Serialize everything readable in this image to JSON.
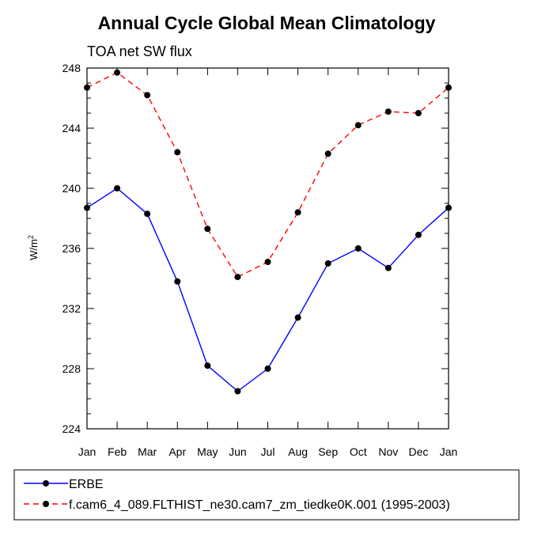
{
  "chart_data": {
    "type": "line",
    "title": "Annual Cycle Global Mean Climatology",
    "subtitle": "TOA net SW flux",
    "xlabel": "",
    "ylabel": "W/m",
    "ylabel_superscript": "2",
    "categories": [
      "Jan",
      "Feb",
      "Mar",
      "Apr",
      "May",
      "Jun",
      "Jul",
      "Aug",
      "Sep",
      "Oct",
      "Nov",
      "Dec",
      "Jan"
    ],
    "ylim": [
      224,
      248
    ],
    "yticks": [
      "224",
      "228",
      "232",
      "236",
      "240",
      "244",
      "248"
    ],
    "series": [
      {
        "name": "ERBE",
        "color": "#0000ff",
        "dash": "solid",
        "values": [
          238.7,
          240.0,
          238.3,
          233.8,
          228.2,
          226.5,
          228.0,
          231.4,
          235.0,
          236.0,
          234.7,
          236.9,
          238.7
        ]
      },
      {
        "name": "f.cam6_4_089.FLTHIST_ne30.cam7_zm_tiedke0K.001 (1995-2003)",
        "color": "#ff0000",
        "dash": "dashed",
        "values": [
          246.7,
          247.7,
          246.2,
          242.4,
          237.3,
          234.1,
          235.1,
          238.4,
          242.3,
          244.2,
          245.1,
          245.0,
          246.7
        ]
      }
    ]
  }
}
